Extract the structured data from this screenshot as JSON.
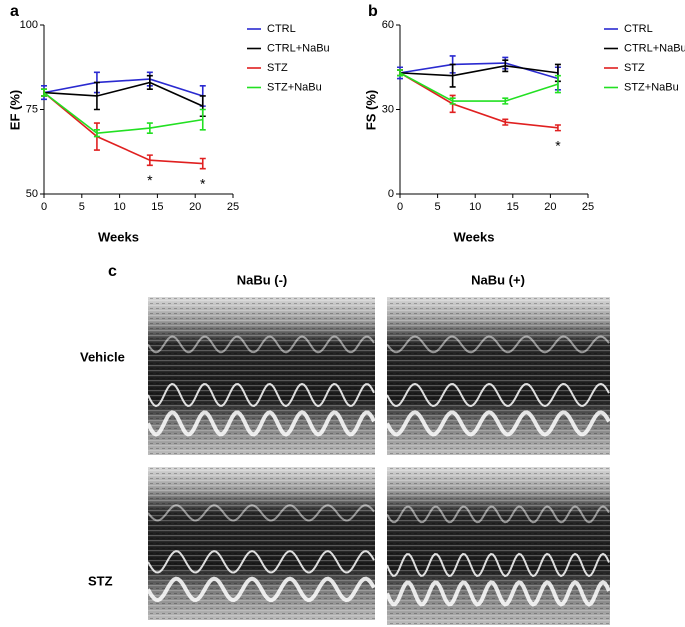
{
  "chart_data": [
    {
      "type": "line",
      "panel_label": "a",
      "xlabel": "Weeks",
      "ylabel": "EF (%)",
      "x": [
        0,
        7,
        14,
        21
      ],
      "xlim": [
        0,
        25
      ],
      "xticks": [
        0,
        5,
        10,
        15,
        20,
        25
      ],
      "ylim": [
        50,
        100
      ],
      "yticks": [
        50,
        75,
        100
      ],
      "series": [
        {
          "name": "CTRL",
          "color": "#2a2ad0",
          "values": [
            80,
            83,
            84,
            79
          ],
          "errors": [
            2,
            3,
            2,
            3
          ]
        },
        {
          "name": "CTRL+NaBu",
          "color": "#000000",
          "values": [
            80,
            79,
            83,
            76
          ],
          "errors": [
            1,
            4,
            2,
            3
          ]
        },
        {
          "name": "STZ",
          "color": "#e02020",
          "values": [
            80,
            67,
            60,
            59
          ],
          "errors": [
            1,
            4,
            1.5,
            1.5
          ]
        },
        {
          "name": "STZ+NaBu",
          "color": "#22e022",
          "values": [
            80,
            68,
            69.5,
            72
          ],
          "errors": [
            1,
            1,
            1.5,
            3
          ]
        }
      ],
      "annotations": [
        {
          "text": "*",
          "x": 14
        },
        {
          "text": "*",
          "x": 21
        }
      ]
    },
    {
      "type": "line",
      "panel_label": "b",
      "xlabel": "Weeks",
      "ylabel": "FS (%)",
      "x": [
        0,
        7,
        14,
        21
      ],
      "xlim": [
        0,
        25
      ],
      "xticks": [
        0,
        5,
        10,
        15,
        20,
        25
      ],
      "ylim": [
        0,
        60
      ],
      "yticks": [
        0,
        30,
        60
      ],
      "series": [
        {
          "name": "CTRL",
          "color": "#2a2ad0",
          "values": [
            43,
            46,
            46.5,
            41
          ],
          "errors": [
            2,
            3,
            2,
            4
          ]
        },
        {
          "name": "CTRL+NaBu",
          "color": "#000000",
          "values": [
            43,
            42,
            45.5,
            43
          ],
          "errors": [
            1,
            4,
            2,
            3
          ]
        },
        {
          "name": "STZ",
          "color": "#e02020",
          "values": [
            43,
            32,
            25.5,
            23.5
          ],
          "errors": [
            1,
            3,
            1,
            1
          ]
        },
        {
          "name": "STZ+NaBu",
          "color": "#22e022",
          "values": [
            43,
            33,
            33,
            39
          ],
          "errors": [
            1,
            1,
            1,
            3
          ]
        }
      ],
      "annotations": [
        {
          "text": "*",
          "x": 21
        }
      ]
    }
  ],
  "panel_c": {
    "label": "c",
    "columns": [
      "NaBu (-)",
      "NaBu (+)"
    ],
    "rows": [
      "Vehicle",
      "STZ"
    ]
  }
}
